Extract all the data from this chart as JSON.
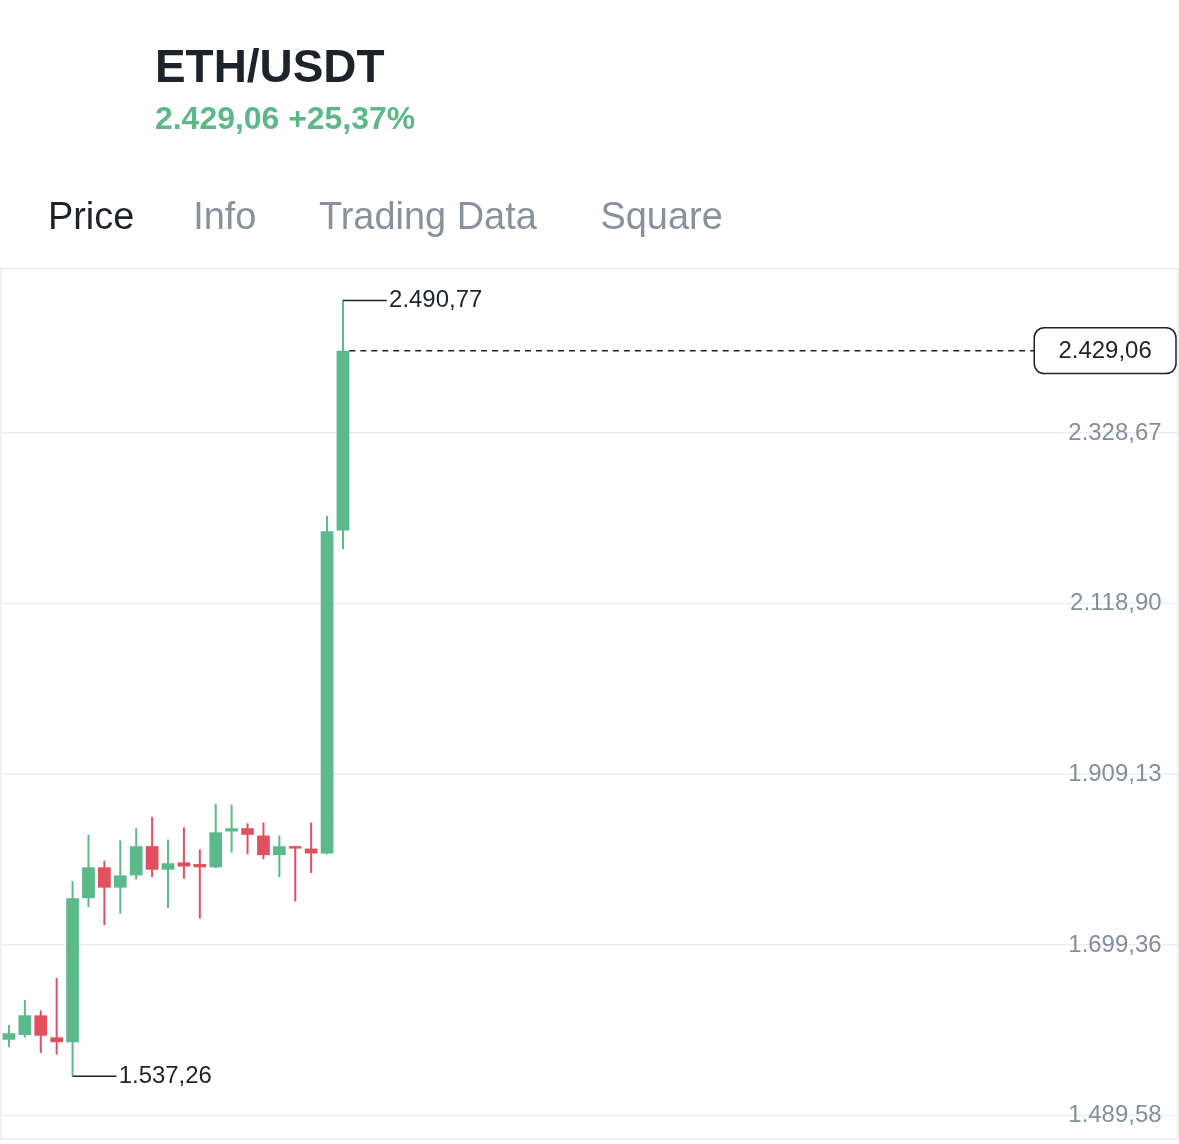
{
  "chart_data": {
    "type": "candlestick",
    "title": "ETH/USDT",
    "subtitle": "2.429,06 +25,37%",
    "categories": [
      null,
      null,
      null,
      null,
      null,
      null,
      null,
      null,
      null,
      null,
      null,
      null,
      null,
      null,
      null,
      null,
      null,
      null,
      null,
      null,
      null,
      null,
      null,
      null,
      null,
      null,
      null,
      null,
      null,
      null,
      null,
      null,
      null,
      null,
      null,
      null,
      null,
      null,
      null,
      null,
      null,
      null,
      null,
      null,
      null,
      null,
      null,
      null,
      null,
      null,
      null,
      null,
      null,
      null,
      null,
      null,
      null,
      null,
      null,
      null,
      null,
      null,
      null,
      null,
      null,
      null,
      null,
      null,
      null,
      null,
      null,
      null,
      null,
      null
    ],
    "ohlc": [
      [
        1582,
        1600,
        1573,
        1590
      ],
      [
        1588,
        1631,
        1585,
        1612
      ],
      [
        1612,
        1618,
        1566,
        1587
      ],
      [
        1585,
        1658,
        1564,
        1579
      ],
      [
        1579,
        1777,
        1537.26,
        1756
      ],
      [
        1756,
        1834,
        1745,
        1794
      ],
      [
        1794,
        1802,
        1723,
        1769
      ],
      [
        1769,
        1827,
        1737,
        1784
      ],
      [
        1784,
        1842,
        1779,
        1820
      ],
      [
        1820,
        1856,
        1782,
        1791
      ],
      [
        1791,
        1828,
        1744,
        1799
      ],
      [
        1800,
        1843,
        1780,
        1795
      ],
      [
        1798,
        1816,
        1731,
        1794
      ],
      [
        1794,
        1872,
        1793,
        1837
      ],
      [
        1838,
        1871,
        1812,
        1842
      ],
      [
        1842,
        1848,
        1810,
        1834
      ],
      [
        1833,
        1849,
        1804,
        1809
      ],
      [
        1809,
        1833,
        1782,
        1820
      ],
      [
        1820,
        1820,
        1752,
        1817
      ],
      [
        1817,
        1849,
        1787,
        1811
      ],
      [
        1811,
        2226,
        1810,
        2207
      ],
      [
        2208,
        2490.77,
        2185,
        2429.06
      ],
      null,
      null,
      null,
      null,
      null,
      null,
      null,
      null,
      null,
      null,
      null,
      null,
      null,
      null,
      null,
      null,
      null,
      null,
      null,
      null,
      null,
      null,
      null,
      null,
      null,
      null,
      null,
      null,
      null,
      null,
      null,
      null,
      null,
      null,
      null,
      null,
      null,
      null,
      null,
      null,
      null,
      null,
      null,
      null,
      null,
      null,
      null,
      null,
      null,
      null,
      null,
      null
    ],
    "colors": [
      "#5bb98b",
      "#5bb98b",
      "#e2505f",
      "#e2505f",
      "#5bb98b",
      "#5bb98b",
      "#e2505f",
      "#5bb98b",
      "#5bb98b",
      "#e2505f",
      "#5bb98b",
      "#e2505f",
      "#e2505f",
      "#5bb98b",
      "#5bb98b",
      "#e2505f",
      "#e2505f",
      "#5bb98b",
      "#e2505f",
      "#e2505f",
      "#5bb98b",
      "#5bb98b",
      null,
      null,
      null,
      null,
      null,
      null,
      null,
      null,
      null,
      null,
      null,
      null,
      null,
      null,
      null,
      null,
      null,
      null,
      null,
      null,
      null,
      null,
      null,
      null,
      null,
      null,
      null,
      null,
      null,
      null,
      null,
      null,
      null,
      null,
      null,
      null,
      null,
      null,
      null,
      null,
      null,
      null,
      null,
      null,
      null,
      null,
      null,
      null,
      null,
      null,
      null,
      null
    ],
    "ylim": [
      1460,
      2530
    ],
    "yticks": [
      {
        "value": 1489.58,
        "label": "1.489,58"
      },
      {
        "value": 1699.36,
        "label": "1.699,36"
      },
      {
        "value": 1909.13,
        "label": "1.909,13"
      },
      {
        "value": 2118.9,
        "label": "2.118,90"
      },
      {
        "value": 2328.67,
        "label": "2.328,67"
      }
    ],
    "grid": "y",
    "tick_labels": "y",
    "ref_lines": [
      {
        "axis": "y",
        "value": 2429.06,
        "label": "2.429,06",
        "color": "#1e2329",
        "line_style": "dashed"
      }
    ],
    "annotations": [
      "Price",
      "Info",
      "Trading Data",
      "Square",
      "2.490,77",
      "1.537,26"
    ]
  }
}
